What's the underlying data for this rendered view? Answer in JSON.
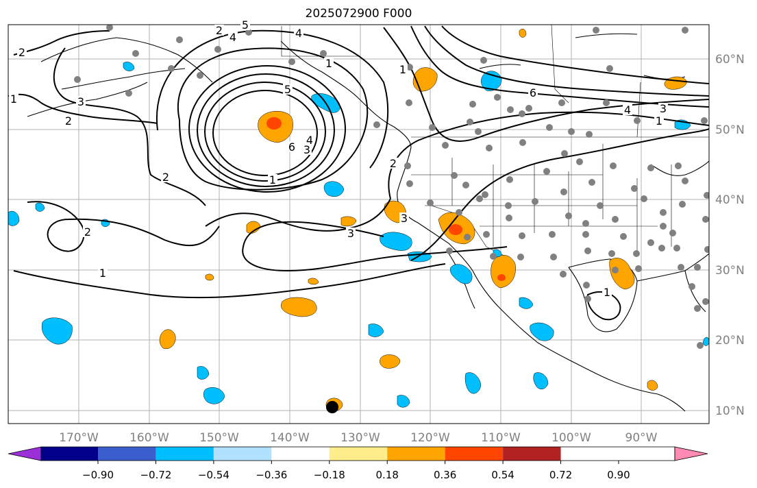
{
  "title": "2025072900 F000",
  "lon_labels": [
    "170°W",
    "160°W",
    "150°W",
    "140°W",
    "130°W",
    "120°W",
    "110°W",
    "100°W",
    "90°W"
  ],
  "lat_labels": [
    "60°N",
    "50°N",
    "40°N",
    "30°N",
    "20°N",
    "10°N"
  ],
  "contour_labels": [
    "5",
    "4",
    "3",
    "2",
    "1",
    "2",
    "3",
    "2",
    "1",
    "2",
    "3",
    "4",
    "5",
    "6",
    "4",
    "1",
    "2",
    "1",
    "2",
    "3",
    "1",
    "6",
    "4",
    "3",
    "1",
    "1"
  ],
  "colorbar": {
    "ticks": [
      "−0.90",
      "−0.72",
      "−0.54",
      "−0.36",
      "−0.18",
      "0.18",
      "0.36",
      "0.54",
      "0.72",
      "0.90"
    ],
    "colors": [
      "#9b30d8",
      "#00008b",
      "#3a5fcd",
      "#00bfff",
      "#b0e2ff",
      "#ffffff",
      "#ffec8b",
      "#ffa500",
      "#ff4500",
      "#b22222",
      "#ff8ab3"
    ]
  },
  "colors": {
    "positive_shading": "#ffa500",
    "positive_strong": "#ff4500",
    "negative_shading": "#00bfff",
    "stations": "#808080",
    "grid": "#b0b0b0",
    "axis_label": "#808080"
  }
}
